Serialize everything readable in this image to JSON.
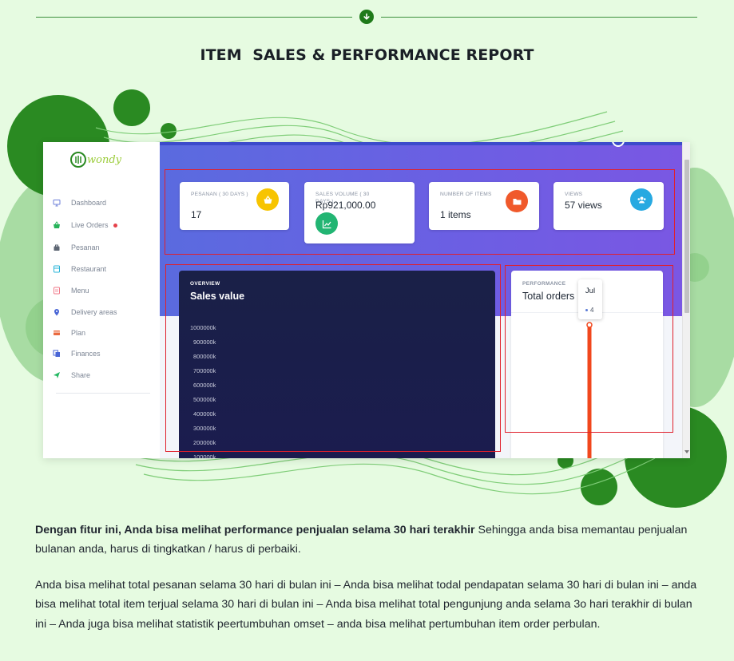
{
  "page": {
    "title": "ITEM  SALES & PERFORMANCE REPORT"
  },
  "colors": {
    "background": "#e6fbe1",
    "brand_green": "#1f7a1a",
    "banner_start": "#5a6bdf",
    "banner_end": "#7a57e3",
    "highlight_red": "#e0202c",
    "chart_bar": "#f1471d",
    "overview_panel": "#1b1c4f"
  },
  "app": {
    "logo_text": "wondy",
    "sidebar": {
      "items": [
        {
          "label": "Dashboard",
          "icon": "monitor-icon",
          "color": "#6c7fd8"
        },
        {
          "label": "Live Orders",
          "icon": "basket-icon",
          "color": "#27b35a",
          "badge": "red-dot"
        },
        {
          "label": "Pesanan",
          "icon": "bag-icon",
          "color": "#5d6673"
        },
        {
          "label": "Restaurant",
          "icon": "store-icon",
          "color": "#29b4d8"
        },
        {
          "label": "Menu",
          "icon": "menu-icon",
          "color": "#f07a8a"
        },
        {
          "label": "Delivery areas",
          "icon": "pin-icon",
          "color": "#4a66d6"
        },
        {
          "label": "Plan",
          "icon": "card-icon",
          "color": "#ea6a3f"
        },
        {
          "label": "Finances",
          "icon": "copy-icon",
          "color": "#4a66d6"
        },
        {
          "label": "Share",
          "icon": "send-icon",
          "color": "#24b862"
        }
      ]
    },
    "stats": [
      {
        "label": "PESANAN ( 30 DAYS )",
        "value": "17",
        "icon": "basket-icon",
        "color": "#f7c400"
      },
      {
        "label": "SALES VOLUME ( 30 DAYS )",
        "value": "Rp921,000.00",
        "icon": "chart-line-icon",
        "color": "#22b573"
      },
      {
        "label": "NUMBER OF ITEMS",
        "value": "1 items",
        "icon": "folder-icon",
        "color": "#f0592b"
      },
      {
        "label": "VIEWS",
        "value": "57 views",
        "icon": "users-icon",
        "color": "#27a9e1"
      }
    ],
    "overview": {
      "kicker": "OVERVIEW",
      "title": "Sales value",
      "y_ticks": [
        "1000000k",
        "900000k",
        "800000k",
        "700000k",
        "600000k",
        "500000k",
        "400000k",
        "300000k",
        "200000k",
        "100000k"
      ]
    },
    "performance": {
      "kicker": "PERFORMANCE",
      "title": "Total orders",
      "tooltip": {
        "month": "Jul",
        "value": "4"
      }
    }
  },
  "body": {
    "paragraph1_bold": "Dengan fitur ini, Anda bisa melihat performance penjualan selama 30 hari terakhir",
    "paragraph1_rest": " Sehingga anda bisa memantau penjualan bulanan anda, harus di tingkatkan / harus di perbaiki.",
    "paragraph2": "Anda bisa melihat total pesanan selama 30 hari di bulan ini – Anda bisa melihat todal pendapatan selama 30 hari di bulan ini – anda bisa melihat total item terjual selama 30 hari di bulan ini – Anda bisa melihat total pengunjung anda selama 3o hari terakhir di bulan ini – Anda juga bisa melihat statistik peertumbuhan omset – anda bisa melihat pertumbuhan item order perbulan."
  }
}
